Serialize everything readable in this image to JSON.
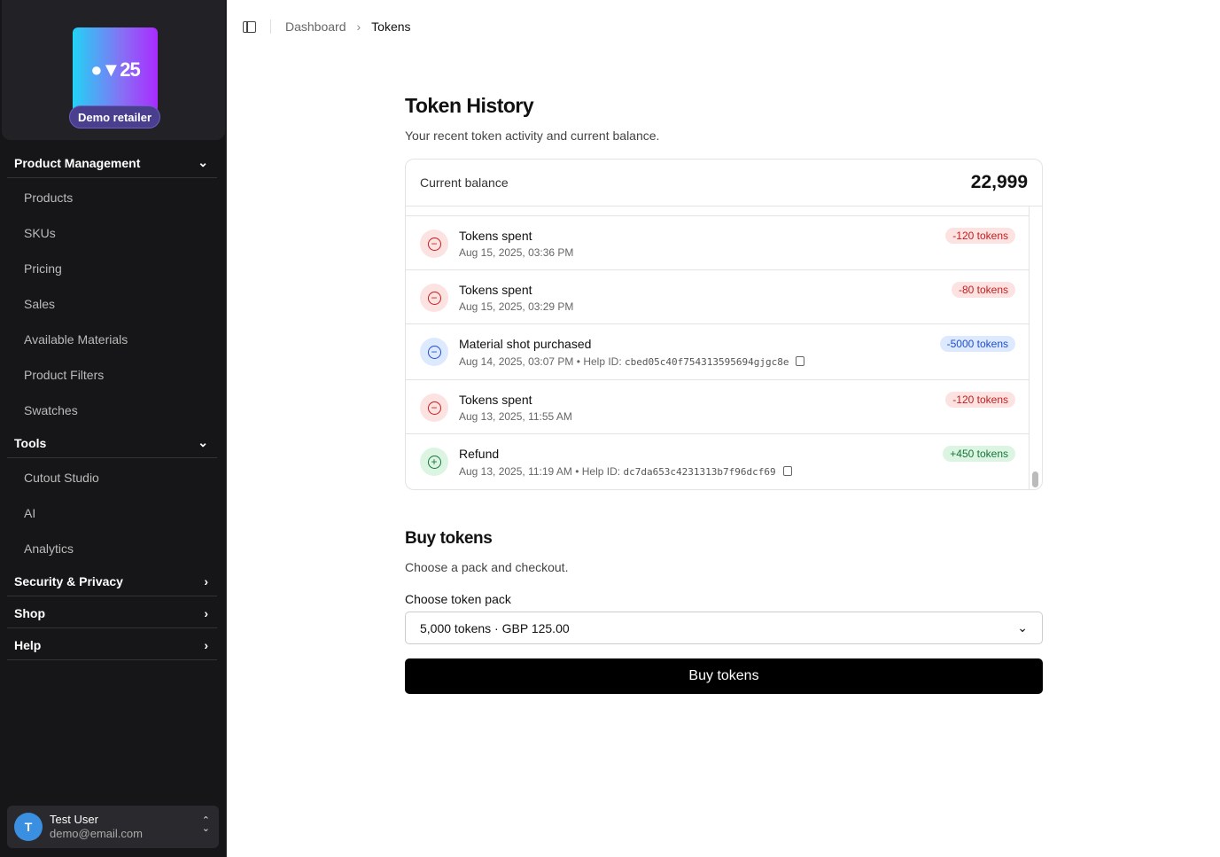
{
  "sidebar": {
    "logo_text": "●▼25",
    "retailer": "Demo retailer",
    "sections": [
      {
        "label": "Product Management",
        "items": [
          "Products",
          "SKUs",
          "Pricing",
          "Sales",
          "Available Materials",
          "Product Filters",
          "Swatches"
        ]
      },
      {
        "label": "Tools",
        "items": [
          "Cutout Studio",
          "AI",
          "Analytics"
        ]
      },
      {
        "label": "Security & Privacy"
      },
      {
        "label": "Shop"
      },
      {
        "label": "Help"
      }
    ],
    "user": {
      "initial": "T",
      "name": "Test User",
      "email": "demo@email.com"
    }
  },
  "breadcrumb": [
    "Dashboard",
    "Tokens"
  ],
  "history": {
    "title": "Token History",
    "subtitle": "Your recent token activity and current balance.",
    "balance_label": "Current balance",
    "balance": "22,999",
    "rows": [
      {
        "title": "Tokens spent",
        "date": "Aug 15, 2025, 03:36 PM",
        "amount": "-120 tokens",
        "type": "spent"
      },
      {
        "title": "Tokens spent",
        "date": "Aug 15, 2025, 03:29 PM",
        "amount": "-80 tokens",
        "type": "spent"
      },
      {
        "title": "Material shot purchased",
        "date": "Aug 14, 2025, 03:07 PM",
        "help_label": "Help ID:",
        "help_id": "cbed05c40f754313595694gjgc8e",
        "amount": "-5000 tokens",
        "type": "purchase"
      },
      {
        "title": "Tokens spent",
        "date": "Aug 13, 2025, 11:55 AM",
        "amount": "-120 tokens",
        "type": "spent"
      },
      {
        "title": "Refund",
        "date": "Aug 13, 2025, 11:19 AM",
        "help_label": "Help ID:",
        "help_id": "dc7da653c4231313b7f96dcf69",
        "amount": "+450 tokens",
        "type": "refund"
      }
    ]
  },
  "buy": {
    "title": "Buy tokens",
    "subtitle": "Choose a pack and checkout.",
    "select_label": "Choose token pack",
    "selected": "5,000 tokens · GBP 125.00",
    "button": "Buy tokens"
  }
}
